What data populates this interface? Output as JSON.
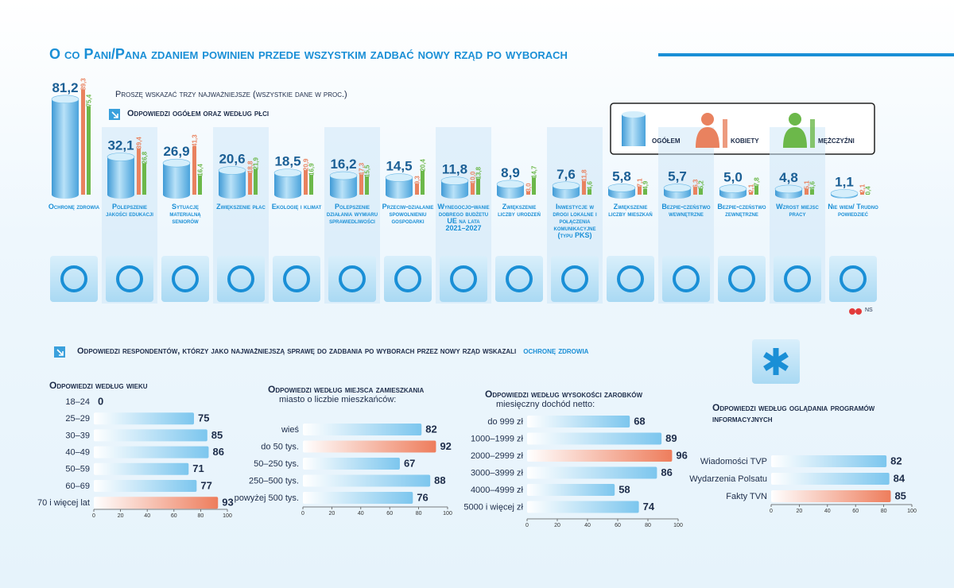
{
  "header": {
    "title": "O co Pani/Pana zdaniem powinien przede wszystkim zadbać nowy rząd po wyborach",
    "subtitle": "Proszę wskazać trzy najważniejsze (wszystkie dane w proc.)",
    "source": "NS"
  },
  "section2": {
    "text": "Odpowiedzi respondentów, którzy jako najważniejszą sprawę do zadbania po wyborach przez nowy rząd wskazali",
    "highlight": "ochronę zdrowia"
  },
  "chart_data": [
    {
      "type": "cylinder",
      "title": "Odpowiedzi ogółem oraz według płci",
      "categories": [
        "Ochronę zdrowia",
        "Polepszenie jakości edukacji",
        "Sytuację materialną seniorów",
        "Zwiększenie płac",
        "Ekologię i klimat",
        "Polepszenie działania wymiaru sprawiedliwości",
        "Przeciw-działanie spowolnieniu gospodarki",
        "Wynegocjo-wanie dobrego budżetu UE na lata 2021–2027",
        "Zwiększenie liczby urodzeń",
        "Inwestycje w drogi lokalne i połączenia komunikacyjne (typu PKS)",
        "Zwiększenie liczby mieszkań",
        "Bezpie-czeństwo wewnętrzne",
        "Bezpie-czeństwo zewnętrzne",
        "Wzrost miejsc pracy",
        "Nie wiem/ Trudno powiedzieć"
      ],
      "series": [
        {
          "name": "ogółem",
          "color": "#5bb3e6",
          "values": [
            81.2,
            32.1,
            26.9,
            20.6,
            18.5,
            16.2,
            14.5,
            11.8,
            8.9,
            7.6,
            5.8,
            5.7,
            5.0,
            4.8,
            1.1
          ],
          "value_labels": [
            "81,2",
            "32,1",
            "26,9",
            "20,6",
            "18,5",
            "16,2",
            "14,5",
            "11,8",
            "8,9",
            "7,6",
            "5,8",
            "5,7",
            "5,0",
            "4,8",
            "1,1"
          ]
        },
        {
          "name": "kobiety",
          "color": "#e9825f",
          "values": [
            89.3,
            39.4,
            41.3,
            18.8,
            20.9,
            17.3,
            9.3,
            10.0,
            3.0,
            11.8,
            7.1,
            6.3,
            2.1,
            5.1,
            2.1
          ],
          "value_labels": [
            "89,3",
            "39,4",
            "41,3",
            "18,8",
            "20,9",
            "17,3",
            "9,3",
            "10,0",
            "3,0",
            "11,8",
            "7,1",
            "6,3",
            "2,1",
            "5,1",
            "2,1"
          ]
        },
        {
          "name": "mężczyźni",
          "color": "#6cb84a",
          "values": [
            75.4,
            26.8,
            16.4,
            21.9,
            16.9,
            15.5,
            20.4,
            13.8,
            14.7,
            4.6,
            4.9,
            5.2,
            7.8,
            4.6,
            0.4
          ],
          "value_labels": [
            "75,4",
            "26,8",
            "16,4",
            "21,9",
            "16,9",
            "15,5",
            "20,4",
            "13,8",
            "14,7",
            "4,6",
            "4,9",
            "5,2",
            "7,8",
            "4,6",
            "0,4"
          ]
        }
      ]
    },
    {
      "type": "hbar",
      "title": "Odpowiedzi według wieku",
      "categories": [
        "18–24",
        "25–29",
        "30–39",
        "40–49",
        "50–59",
        "60–69",
        "70 i więcej lat"
      ],
      "values": [
        0,
        75,
        85,
        86,
        71,
        77,
        93
      ],
      "colors": [
        "#7cc6ee",
        "#7cc6ee",
        "#7cc6ee",
        "#7cc6ee",
        "#7cc6ee",
        "#7cc6ee",
        "#ee7d5c"
      ],
      "xlim": [
        0,
        100
      ],
      "xticks": [
        0,
        20,
        40,
        60,
        80,
        100
      ]
    },
    {
      "type": "hbar",
      "title": "Odpowiedzi według miejsca zamieszkania",
      "subtitle": "miasto o liczbie mieszkańców:",
      "categories": [
        "wieś",
        "do 50 tys.",
        "50–250 tys.",
        "250–500 tys.",
        "powyżej 500 tys."
      ],
      "values": [
        82,
        92,
        67,
        88,
        76
      ],
      "colors": [
        "#7cc6ee",
        "#ee7d5c",
        "#7cc6ee",
        "#7cc6ee",
        "#7cc6ee"
      ],
      "xlim": [
        0,
        100
      ],
      "xticks": [
        0,
        20,
        40,
        60,
        80,
        100
      ]
    },
    {
      "type": "hbar",
      "title": "Odpowiedzi według wysokości zarobków",
      "subtitle": "miesięczny dochód netto:",
      "categories": [
        "do 999 zł",
        "1000–1999 zł",
        "2000–2999 zł",
        "3000–3999 zł",
        "4000–4999 zł",
        "5000 i więcej zł"
      ],
      "values": [
        68,
        89,
        96,
        86,
        58,
        74
      ],
      "colors": [
        "#7cc6ee",
        "#7cc6ee",
        "#ee7d5c",
        "#7cc6ee",
        "#7cc6ee",
        "#7cc6ee"
      ],
      "xlim": [
        0,
        100
      ],
      "xticks": [
        0,
        20,
        40,
        60,
        80,
        100
      ]
    },
    {
      "type": "hbar",
      "title": "Odpowiedzi według oglądania programów informacyjnych",
      "categories": [
        "Wiadomości TVP",
        "Wydarzenia Polsatu",
        "Fakty TVN"
      ],
      "values": [
        82,
        84,
        85
      ],
      "colors": [
        "#7cc6ee",
        "#7cc6ee",
        "#ee7d5c"
      ],
      "xlim": [
        0,
        100
      ],
      "xticks": [
        0,
        20,
        40,
        60,
        80,
        100
      ]
    }
  ]
}
